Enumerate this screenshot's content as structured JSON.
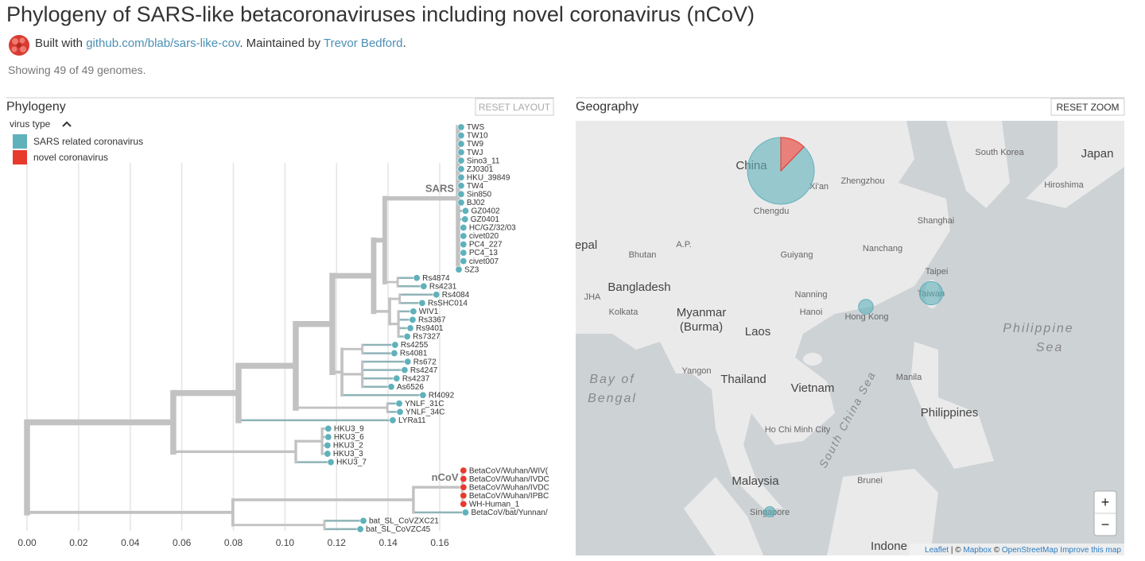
{
  "header": {
    "title": "Phylogeny of SARS-like betacoronaviruses including novel coronavirus (nCoV)",
    "built_with": "Built with",
    "repo": "github.com/blab/sars-like-cov",
    "maintained_by": ". Maintained by",
    "author": "Trevor Bedford",
    "end": "."
  },
  "status": "Showing 49 of 49 genomes.",
  "phylogeny": {
    "title": "Phylogeny",
    "reset": "RESET LAYOUT",
    "legend": {
      "title": "virus type",
      "items": [
        {
          "label": "SARS related coronavirus",
          "color": "#5fb1bb"
        },
        {
          "label": "novel coronavirus",
          "color": "#e8392d"
        }
      ]
    },
    "axis": {
      "xlim": [
        0,
        0.16
      ],
      "xticks": [
        {
          "value": 0,
          "label": "0.00"
        },
        {
          "value": 0.02,
          "label": "0.02"
        },
        {
          "value": 0.04,
          "label": "0.04"
        },
        {
          "value": 0.06,
          "label": "0.06"
        },
        {
          "value": 0.08,
          "label": "0.08"
        },
        {
          "value": 0.1,
          "label": "0.10"
        },
        {
          "value": 0.12,
          "label": "0.12"
        },
        {
          "value": 0.14,
          "label": "0.14"
        },
        {
          "value": 0.16,
          "label": "0.16"
        }
      ],
      "grid": true
    },
    "tree": {
      "x": 0,
      "children": [
        {
          "x": 0.0567,
          "children": [
            {
              "x": 0.082,
              "children": [
                {
                  "x": 0.1042,
                  "children": [
                    {
                      "x": 0.1184,
                      "children": [
                        {
                          "x": 0.1344,
                          "children": [
                            {
                              "x": 0.1387,
                              "children": [
                                {
                                  "x": 0.1671,
                                  "label": "SARS",
                                  "children": [
                                    {
                                      "name": "TWS",
                                      "x": 0.1683,
                                      "type": 0
                                    },
                                    {
                                      "name": "TW10",
                                      "x": 0.1683,
                                      "type": 0
                                    },
                                    {
                                      "name": "TW9",
                                      "x": 0.1683,
                                      "type": 0
                                    },
                                    {
                                      "name": "TWJ",
                                      "x": 0.1683,
                                      "type": 0
                                    },
                                    {
                                      "name": "Sino3_11",
                                      "x": 0.1683,
                                      "type": 0
                                    },
                                    {
                                      "name": "ZJ0301",
                                      "x": 0.1683,
                                      "type": 0
                                    },
                                    {
                                      "name": "HKU_39849",
                                      "x": 0.1683,
                                      "type": 0
                                    },
                                    {
                                      "name": "TW4",
                                      "x": 0.1683,
                                      "type": 0
                                    },
                                    {
                                      "name": "Sin850",
                                      "x": 0.1683,
                                      "type": 0
                                    },
                                    {
                                      "name": "BJ02",
                                      "x": 0.1683,
                                      "type": 0
                                    },
                                    {
                                      "name": "GZ0402",
                                      "x": 0.17,
                                      "type": 0
                                    },
                                    {
                                      "name": "GZ0401",
                                      "x": 0.1698,
                                      "type": 0
                                    },
                                    {
                                      "name": "HC/GZ/32/03",
                                      "x": 0.1692,
                                      "type": 0
                                    },
                                    {
                                      "name": "civet020",
                                      "x": 0.1692,
                                      "type": 0
                                    },
                                    {
                                      "name": "PC4_227",
                                      "x": 0.1692,
                                      "type": 0
                                    },
                                    {
                                      "name": "PC4_13",
                                      "x": 0.1692,
                                      "type": 0
                                    },
                                    {
                                      "name": "civet007",
                                      "x": 0.1692,
                                      "type": 0
                                    },
                                    {
                                      "name": "SZ3",
                                      "x": 0.1674,
                                      "type": 0
                                    }
                                  ]
                                },
                                {
                                  "x": 0.1437,
                                  "children": [
                                    {
                                      "name": "Rs4874",
                                      "x": 0.1511,
                                      "type": 0
                                    },
                                    {
                                      "name": "Rs4231",
                                      "x": 0.1538,
                                      "type": 0
                                    }
                                  ]
                                }
                              ]
                            },
                            {
                              "x": 0.1406,
                              "children": [
                                {
                                  "x": 0.1445,
                                  "children": [
                                    {
                                      "name": "Rs4084",
                                      "x": 0.1587,
                                      "type": 0
                                    },
                                    {
                                      "name": "RsSHC014",
                                      "x": 0.1532,
                                      "type": 0
                                    }
                                  ]
                                },
                                {
                                  "x": 0.144,
                                  "children": [
                                    {
                                      "name": "WIV1",
                                      "x": 0.1498,
                                      "type": 0
                                    },
                                    {
                                      "name": "Rs3367",
                                      "x": 0.1495,
                                      "type": 0
                                    },
                                    {
                                      "name": "Rs9401",
                                      "x": 0.1486,
                                      "type": 0
                                    },
                                    {
                                      "name": "Rs7327",
                                      "x": 0.1474,
                                      "type": 0
                                    }
                                  ]
                                }
                              ]
                            }
                          ]
                        },
                        {
                          "x": 0.1221,
                          "children": [
                            {
                              "x": 0.13,
                              "children": [
                                {
                                  "name": "Rs4255",
                                  "x": 0.1427,
                                  "type": 0
                                },
                                {
                                  "name": "Rs4081",
                                  "x": 0.1424,
                                  "type": 0
                                }
                              ]
                            },
                            {
                              "x": 0.13,
                              "children": [
                                {
                                  "name": "Rs672",
                                  "x": 0.1476,
                                  "type": 0
                                },
                                {
                                  "name": "Rs4247",
                                  "x": 0.1464,
                                  "type": 0
                                },
                                {
                                  "name": "Rs4237",
                                  "x": 0.1433,
                                  "type": 0
                                },
                                {
                                  "name": "As6526",
                                  "x": 0.1412,
                                  "type": 0
                                }
                              ]
                            },
                            {
                              "name": "Rf4092",
                              "x": 0.1535,
                              "type": 0
                            }
                          ]
                        }
                      ]
                    },
                    {
                      "x": 0.1397,
                      "children": [
                        {
                          "name": "YNLF_31C",
                          "x": 0.1443,
                          "type": 0
                        },
                        {
                          "name": "YNLF_34C",
                          "x": 0.1446,
                          "type": 0
                        }
                      ]
                    }
                  ]
                },
                {
                  "name": "LYRa11",
                  "x": 0.1418,
                  "type": 0
                }
              ]
            },
            {
              "x": 0.1042,
              "children": [
                {
                  "x": 0.1144,
                  "children": [
                    {
                      "name": "HKU3_9",
                      "x": 0.1168,
                      "type": 0
                    },
                    {
                      "name": "HKU3_6",
                      "x": 0.1168,
                      "type": 0
                    },
                    {
                      "name": "HKU3_2",
                      "x": 0.1165,
                      "type": 0
                    },
                    {
                      "name": "HKU3_3",
                      "x": 0.1165,
                      "type": 0
                    }
                  ]
                },
                {
                  "name": "HKU3_7",
                  "x": 0.1178,
                  "type": 0
                }
              ]
            }
          ]
        },
        {
          "x": 0.0798,
          "children": [
            {
              "x": 0.1498,
              "children": [
                {
                  "x": 0.1688,
                  "label": "nCoV",
                  "children": [
                    {
                      "name": "BetaCoV/Wuhan/WIV(",
                      "x": 0.1692,
                      "type": 1
                    },
                    {
                      "name": "BetaCoV/Wuhan/IVDC",
                      "x": 0.1692,
                      "type": 1
                    },
                    {
                      "name": "BetaCoV/Wuhan/IVDC",
                      "x": 0.1692,
                      "type": 1
                    },
                    {
                      "name": "BetaCoV/Wuhan/IPBC",
                      "x": 0.1692,
                      "type": 1
                    },
                    {
                      "name": "WH-Human_1",
                      "x": 0.1692,
                      "type": 1
                    }
                  ]
                },
                {
                  "name": "BetaCoV/bat/Yunnan/",
                  "x": 0.17,
                  "type": 0
                }
              ]
            },
            {
              "x": 0.1153,
              "children": [
                {
                  "name": "bat_SL_CoVZXC21",
                  "x": 0.1304,
                  "type": 0
                },
                {
                  "name": "bat_SL_CoVZC45",
                  "x": 0.1292,
                  "type": 0
                }
              ]
            }
          ]
        }
      ]
    }
  },
  "geography": {
    "title": "Geography",
    "reset": "RESET ZOOM",
    "demes": [
      {
        "name": "China",
        "counts": [
          36,
          5
        ]
      },
      {
        "name": "Hong Kong",
        "counts": [
          2,
          0
        ]
      },
      {
        "name": "Taiwan",
        "counts": [
          5,
          0
        ]
      },
      {
        "name": "Singapore",
        "counts": [
          1,
          0
        ]
      }
    ],
    "labels": [
      "South Korea",
      "Japan",
      "Xi'an",
      "Zhengzhou",
      "Hiroshima",
      "Shanghai",
      "Chengdu",
      "epal",
      "Bhutan",
      "A.P.",
      "Guiyang",
      "Nanchang",
      "Taipei",
      "Bangladesh",
      "JHA",
      "Nanning",
      "Myanmar",
      "(Burma)",
      "Kolkata",
      "Hanoi",
      "Laos",
      "Philippine",
      "Sea",
      "Yangon",
      "Thailand",
      "Vietnam",
      "Manila",
      "Bay of",
      "Bengal",
      "South China Sea",
      "Philippines",
      "Ho Chi Minh City",
      "Malaysia",
      "Brunei",
      "Indone"
    ],
    "zoom_in": "+",
    "zoom_out": "−",
    "attribution": {
      "leaflet": "Leaflet",
      "sep": "| ©",
      "mapbox": "Mapbox",
      "copy": "©",
      "osm": "OpenStreetMap",
      "improve": "Improve this map"
    }
  }
}
